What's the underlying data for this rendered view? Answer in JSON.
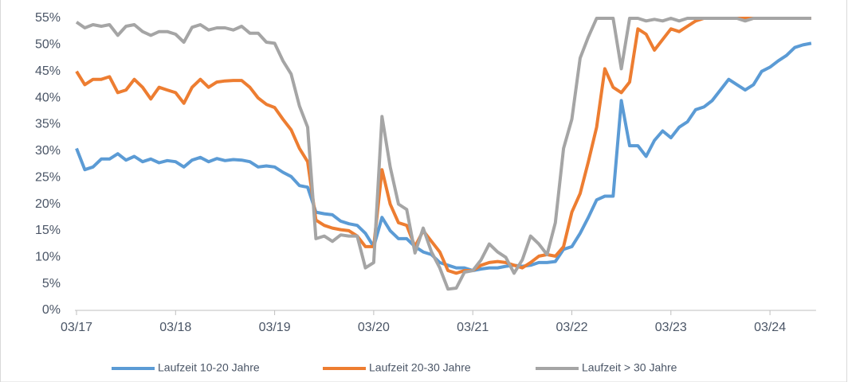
{
  "chart_data": {
    "type": "line",
    "categories": [
      "03/17",
      null,
      null,
      null,
      null,
      null,
      null,
      null,
      null,
      null,
      null,
      null,
      "03/18",
      null,
      null,
      null,
      null,
      null,
      null,
      null,
      null,
      null,
      null,
      null,
      "03/19",
      null,
      null,
      null,
      null,
      null,
      null,
      null,
      null,
      null,
      null,
      null,
      "03/20",
      null,
      null,
      null,
      null,
      null,
      null,
      null,
      null,
      null,
      null,
      null,
      "03/21",
      null,
      null,
      null,
      null,
      null,
      null,
      null,
      null,
      null,
      null,
      null,
      "03/22",
      null,
      null,
      null,
      null,
      null,
      null,
      null,
      null,
      null,
      null,
      null,
      "03/23",
      null,
      null,
      null,
      null,
      null,
      null,
      null,
      null,
      null,
      null,
      null,
      "03/24",
      null,
      null,
      null,
      null,
      null
    ],
    "series": [
      {
        "name": "Laufzeit 10-20 Jahre",
        "color": "#5b9bd5",
        "values": [
          30.5,
          26.5,
          27,
          28.5,
          28.5,
          29.5,
          28.3,
          29,
          28,
          28.5,
          27.8,
          28.2,
          28,
          27,
          28.3,
          28.8,
          28,
          28.6,
          28.2,
          28.4,
          28.3,
          28,
          27,
          27.2,
          27,
          26,
          25.2,
          23.5,
          23.2,
          18.5,
          18.2,
          18,
          16.8,
          16.3,
          16,
          14.5,
          12,
          17.5,
          15,
          13.5,
          13.5,
          12,
          11,
          10.5,
          9,
          8.5,
          8,
          8,
          7.5,
          7.8,
          8,
          8,
          8.3,
          8.5,
          8.3,
          8.5,
          9,
          9,
          9.2,
          11.5,
          12,
          14.5,
          17.5,
          20.8,
          21.5,
          21.5,
          39.5,
          31,
          31,
          29,
          32,
          33.8,
          32.5,
          34.5,
          35.5,
          37.8,
          38.3,
          39.5,
          41.5,
          43.5,
          42.5,
          41.5,
          42.5,
          45,
          45.8,
          47,
          48,
          49.5,
          50,
          50.3
        ]
      },
      {
        "name": "Laufzeit 20-30 Jahre",
        "color": "#ed7d31",
        "values": [
          45,
          42.5,
          43.5,
          43.5,
          44,
          41,
          41.5,
          43.5,
          42,
          39.8,
          42,
          41.5,
          41,
          39,
          42,
          43.5,
          42,
          43,
          43.2,
          43.3,
          43.3,
          42,
          40,
          38.8,
          38.2,
          36,
          34,
          30.5,
          28,
          17,
          16,
          15.5,
          15.2,
          15,
          14,
          12,
          12,
          26.5,
          20,
          16.5,
          16,
          12,
          15,
          13,
          11,
          7.5,
          7,
          7.5,
          7.5,
          8.5,
          9,
          9.2,
          9,
          8.5,
          8,
          9,
          10.2,
          10.5,
          10.2,
          12,
          18.5,
          22,
          28,
          34.5,
          45.5,
          42,
          41,
          43,
          53,
          52,
          49,
          51,
          53,
          52.5,
          53.5,
          54.5,
          55,
          55,
          55,
          55,
          55,
          55,
          55,
          55,
          55,
          55,
          55,
          55,
          55,
          55
        ]
      },
      {
        "name": "Laufzeit > 30 Jahre",
        "color": "#a5a5a5",
        "values": [
          54.3,
          53.2,
          53.8,
          53.5,
          53.8,
          51.8,
          53.5,
          53.8,
          52.5,
          51.8,
          52.5,
          52.5,
          52,
          50.5,
          53.3,
          53.8,
          52.8,
          53.2,
          53.2,
          52.8,
          53.5,
          52.2,
          52.2,
          50.5,
          50.3,
          47,
          44.5,
          38.5,
          34.5,
          13.5,
          14,
          13,
          14.2,
          14,
          14,
          8,
          9,
          36.5,
          27,
          20,
          19,
          10.8,
          15.5,
          11,
          8,
          4,
          4.2,
          7.2,
          7.5,
          9.5,
          12.5,
          11,
          10,
          7,
          9.5,
          14,
          12.5,
          10.5,
          16.5,
          30.5,
          36,
          47.5,
          51.5,
          55,
          55,
          55,
          45.5,
          55,
          55,
          54.5,
          54.8,
          54.5,
          55,
          54.5,
          55,
          55,
          55,
          55,
          55,
          55,
          55,
          54.5,
          55,
          55,
          55,
          55,
          55,
          55,
          55,
          55
        ]
      }
    ],
    "ylim": [
      0,
      55
    ],
    "yticks": [
      {
        "value": 0,
        "label": "0%"
      },
      {
        "value": 5,
        "label": "5%"
      },
      {
        "value": 10,
        "label": "10%"
      },
      {
        "value": 15,
        "label": "15%"
      },
      {
        "value": 20,
        "label": "20%"
      },
      {
        "value": 25,
        "label": "25%"
      },
      {
        "value": 30,
        "label": "30%"
      },
      {
        "value": 35,
        "label": "35%"
      },
      {
        "value": 40,
        "label": "40%"
      },
      {
        "value": 45,
        "label": "45%"
      },
      {
        "value": 50,
        "label": "50%"
      },
      {
        "value": 55,
        "label": "55%"
      }
    ],
    "legend": "bottom",
    "grid": false
  }
}
